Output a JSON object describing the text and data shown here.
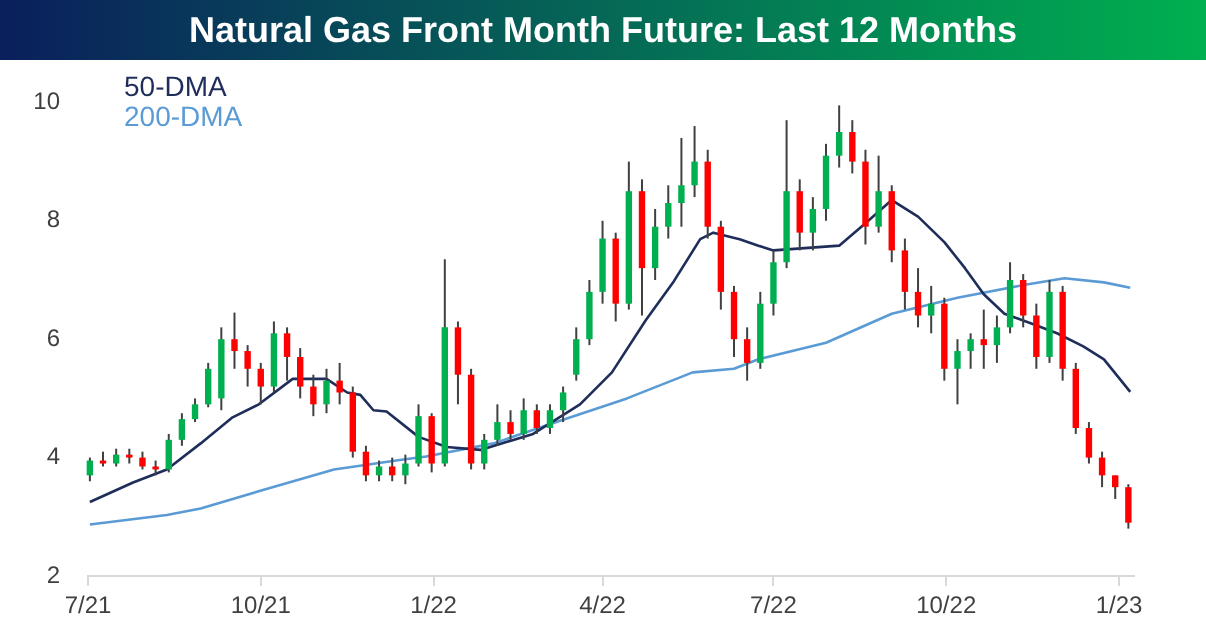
{
  "chart_data": {
    "type": "candlestick",
    "title": "Natural Gas Front Month Future: Last 12 Months",
    "x": [
      "2021-07-02",
      "2021-07-09",
      "2021-07-16",
      "2021-07-23",
      "2021-07-30",
      "2021-08-06",
      "2021-08-13",
      "2021-08-20",
      "2021-08-27",
      "2021-09-03",
      "2021-09-10",
      "2021-09-17",
      "2021-09-24",
      "2021-10-01",
      "2021-10-08",
      "2021-10-15",
      "2021-10-22",
      "2021-10-29",
      "2021-11-05",
      "2021-11-12",
      "2021-11-19",
      "2021-11-26",
      "2021-12-03",
      "2021-12-10",
      "2021-12-17",
      "2021-12-24",
      "2021-12-31",
      "2022-01-07",
      "2022-01-14",
      "2022-01-21",
      "2022-01-28",
      "2022-02-04",
      "2022-02-11",
      "2022-02-18",
      "2022-02-25",
      "2022-03-04",
      "2022-03-11",
      "2022-03-18",
      "2022-03-25",
      "2022-04-01",
      "2022-04-08",
      "2022-04-15",
      "2022-04-22",
      "2022-04-29",
      "2022-05-06",
      "2022-05-13",
      "2022-05-20",
      "2022-05-27",
      "2022-06-03",
      "2022-06-10",
      "2022-06-17",
      "2022-06-24",
      "2022-07-01",
      "2022-07-08",
      "2022-07-15",
      "2022-07-22",
      "2022-07-29",
      "2022-08-05",
      "2022-08-12",
      "2022-08-19",
      "2022-08-26",
      "2022-09-02",
      "2022-09-09",
      "2022-09-16",
      "2022-09-23",
      "2022-09-30",
      "2022-10-07",
      "2022-10-14",
      "2022-10-21",
      "2022-10-28",
      "2022-11-04",
      "2022-11-11",
      "2022-11-18",
      "2022-11-25",
      "2022-12-02",
      "2022-12-09",
      "2022-12-16",
      "2022-12-23",
      "2022-12-30",
      "2023-01-06"
    ],
    "ohlc": [
      [
        3.7,
        4.0,
        3.6,
        3.95
      ],
      [
        3.95,
        4.1,
        3.85,
        3.9
      ],
      [
        3.9,
        4.15,
        3.85,
        4.05
      ],
      [
        4.05,
        4.15,
        3.9,
        4.0
      ],
      [
        4.0,
        4.1,
        3.8,
        3.85
      ],
      [
        3.85,
        3.95,
        3.7,
        3.8
      ],
      [
        3.8,
        4.4,
        3.75,
        4.3
      ],
      [
        4.3,
        4.75,
        4.2,
        4.65
      ],
      [
        4.65,
        5.0,
        4.6,
        4.9
      ],
      [
        4.9,
        5.6,
        4.85,
        5.5
      ],
      [
        5.0,
        6.2,
        4.8,
        6.0
      ],
      [
        6.0,
        6.45,
        5.5,
        5.8
      ],
      [
        5.8,
        5.9,
        5.2,
        5.5
      ],
      [
        5.5,
        5.6,
        4.9,
        5.2
      ],
      [
        5.2,
        6.3,
        5.1,
        6.1
      ],
      [
        6.1,
        6.2,
        5.3,
        5.7
      ],
      [
        5.7,
        5.85,
        5.0,
        5.2
      ],
      [
        5.2,
        5.4,
        4.7,
        4.9
      ],
      [
        4.9,
        5.5,
        4.75,
        5.3
      ],
      [
        5.3,
        5.6,
        4.9,
        5.1
      ],
      [
        5.1,
        5.2,
        4.0,
        4.1
      ],
      [
        4.1,
        4.2,
        3.6,
        3.7
      ],
      [
        3.7,
        3.95,
        3.6,
        3.85
      ],
      [
        3.85,
        4.0,
        3.6,
        3.7
      ],
      [
        3.7,
        4.05,
        3.55,
        3.9
      ],
      [
        3.9,
        4.9,
        3.85,
        4.7
      ],
      [
        4.7,
        4.75,
        3.75,
        3.9
      ],
      [
        3.9,
        7.35,
        3.85,
        6.2
      ],
      [
        6.2,
        6.3,
        4.9,
        5.4
      ],
      [
        5.4,
        5.5,
        3.8,
        3.9
      ],
      [
        3.9,
        4.4,
        3.8,
        4.3
      ],
      [
        4.3,
        4.9,
        4.2,
        4.6
      ],
      [
        4.6,
        4.8,
        4.3,
        4.4
      ],
      [
        4.4,
        5.0,
        4.3,
        4.8
      ],
      [
        4.8,
        4.9,
        4.4,
        4.5
      ],
      [
        4.5,
        4.9,
        4.4,
        4.8
      ],
      [
        4.8,
        5.2,
        4.6,
        5.1
      ],
      [
        5.4,
        6.2,
        5.3,
        6.0
      ],
      [
        6.0,
        7.0,
        5.9,
        6.8
      ],
      [
        6.8,
        8.0,
        6.6,
        7.7
      ],
      [
        7.7,
        7.8,
        6.3,
        6.6
      ],
      [
        6.6,
        9.0,
        6.5,
        8.5
      ],
      [
        8.5,
        8.7,
        6.4,
        7.2
      ],
      [
        7.2,
        8.2,
        7.0,
        7.9
      ],
      [
        7.9,
        8.6,
        7.7,
        8.3
      ],
      [
        8.3,
        9.4,
        7.9,
        8.6
      ],
      [
        8.6,
        9.6,
        8.4,
        9.0
      ],
      [
        9.0,
        9.2,
        7.7,
        7.9
      ],
      [
        7.9,
        8.0,
        6.5,
        6.8
      ],
      [
        6.8,
        6.9,
        5.7,
        6.0
      ],
      [
        6.0,
        6.2,
        5.3,
        5.6
      ],
      [
        5.6,
        6.8,
        5.5,
        6.6
      ],
      [
        6.6,
        7.5,
        6.4,
        7.3
      ],
      [
        7.3,
        9.7,
        7.2,
        8.5
      ],
      [
        8.5,
        8.7,
        7.5,
        7.8
      ],
      [
        7.8,
        8.4,
        7.5,
        8.2
      ],
      [
        8.2,
        9.3,
        8.0,
        9.1
      ],
      [
        9.1,
        9.95,
        8.9,
        9.5
      ],
      [
        9.5,
        9.7,
        8.8,
        9.0
      ],
      [
        9.0,
        9.2,
        7.6,
        7.9
      ],
      [
        7.9,
        9.1,
        7.8,
        8.5
      ],
      [
        8.5,
        8.6,
        7.3,
        7.5
      ],
      [
        7.5,
        7.7,
        6.5,
        6.8
      ],
      [
        6.8,
        7.2,
        6.2,
        6.4
      ],
      [
        6.4,
        6.9,
        6.1,
        6.6
      ],
      [
        6.6,
        6.7,
        5.3,
        5.5
      ],
      [
        5.5,
        6.0,
        4.9,
        5.8
      ],
      [
        5.8,
        6.1,
        5.5,
        6.0
      ],
      [
        6.0,
        6.5,
        5.5,
        5.9
      ],
      [
        5.9,
        6.4,
        5.6,
        6.2
      ],
      [
        6.2,
        7.3,
        6.1,
        7.0
      ],
      [
        7.0,
        7.1,
        6.2,
        6.4
      ],
      [
        6.4,
        6.6,
        5.5,
        5.7
      ],
      [
        5.7,
        7.0,
        5.6,
        6.8
      ],
      [
        6.8,
        6.9,
        5.3,
        5.5
      ],
      [
        5.5,
        5.6,
        4.4,
        4.5
      ],
      [
        4.5,
        4.6,
        3.9,
        4.0
      ],
      [
        4.0,
        4.1,
        3.5,
        3.7
      ],
      [
        3.7,
        3.7,
        3.3,
        3.5
      ],
      [
        3.5,
        3.55,
        2.8,
        2.9
      ]
    ],
    "series": [
      {
        "name": "50-DMA",
        "type": "line",
        "color": "#1f2d5a",
        "x": [
          "2021-07-02",
          "2021-07-25",
          "2021-08-12",
          "2021-08-30",
          "2021-09-16",
          "2021-09-30",
          "2021-10-18",
          "2021-11-05",
          "2021-11-16",
          "2021-11-23",
          "2021-11-30",
          "2021-12-07",
          "2021-12-24",
          "2022-01-08",
          "2022-01-26",
          "2022-02-23",
          "2022-03-20",
          "2022-04-06",
          "2022-04-24",
          "2022-05-09",
          "2022-05-23",
          "2022-05-30",
          "2022-06-13",
          "2022-06-23",
          "2022-07-01",
          "2022-07-14",
          "2022-08-05",
          "2022-08-19",
          "2022-09-02",
          "2022-09-16",
          "2022-09-30",
          "2022-10-11",
          "2022-10-21",
          "2022-11-01",
          "2022-11-15",
          "2022-11-29",
          "2022-12-13",
          "2022-12-24",
          "2023-01-07"
        ],
        "values": [
          3.25,
          3.58,
          3.8,
          4.24,
          4.68,
          4.9,
          5.33,
          5.33,
          5.1,
          5.06,
          4.8,
          4.78,
          4.35,
          4.18,
          4.13,
          4.4,
          4.9,
          5.44,
          6.32,
          6.98,
          7.69,
          7.8,
          7.69,
          7.58,
          7.5,
          7.53,
          7.58,
          7.96,
          8.35,
          8.07,
          7.64,
          7.2,
          6.76,
          6.43,
          6.27,
          6.1,
          5.88,
          5.66,
          5.11
        ]
      },
      {
        "name": "200-DMA",
        "type": "line",
        "color": "#5b9bd5",
        "x": [
          "2021-07-02",
          "2021-08-12",
          "2021-08-30",
          "2021-10-04",
          "2021-11-09",
          "2021-12-14",
          "2021-12-28",
          "2022-02-02",
          "2022-03-09",
          "2022-04-14",
          "2022-05-19",
          "2022-06-10",
          "2022-06-23",
          "2022-07-29",
          "2022-09-02",
          "2022-10-07",
          "2022-11-12",
          "2022-12-03",
          "2022-12-24",
          "2023-01-07"
        ],
        "values": [
          2.87,
          3.03,
          3.14,
          3.47,
          3.8,
          3.96,
          4.02,
          4.24,
          4.62,
          5.0,
          5.44,
          5.5,
          5.66,
          5.94,
          6.43,
          6.7,
          6.92,
          7.03,
          6.96,
          6.87
        ]
      }
    ],
    "xlim": [
      "2021-07-01",
      "2023-01-09"
    ],
    "xticks": [
      {
        "value": "2021-07-01",
        "label": "7/21"
      },
      {
        "value": "2021-10-01",
        "label": "10/21"
      },
      {
        "value": "2022-01-01",
        "label": "1/22"
      },
      {
        "value": "2022-04-01",
        "label": "4/22"
      },
      {
        "value": "2022-07-01",
        "label": "7/22"
      },
      {
        "value": "2022-10-01",
        "label": "10/22"
      },
      {
        "value": "2023-01-01",
        "label": "1/23"
      }
    ],
    "ylim": [
      2,
      10
    ],
    "yticks": [
      2,
      4,
      6,
      8,
      10
    ],
    "grid": false,
    "legend": "top left"
  }
}
